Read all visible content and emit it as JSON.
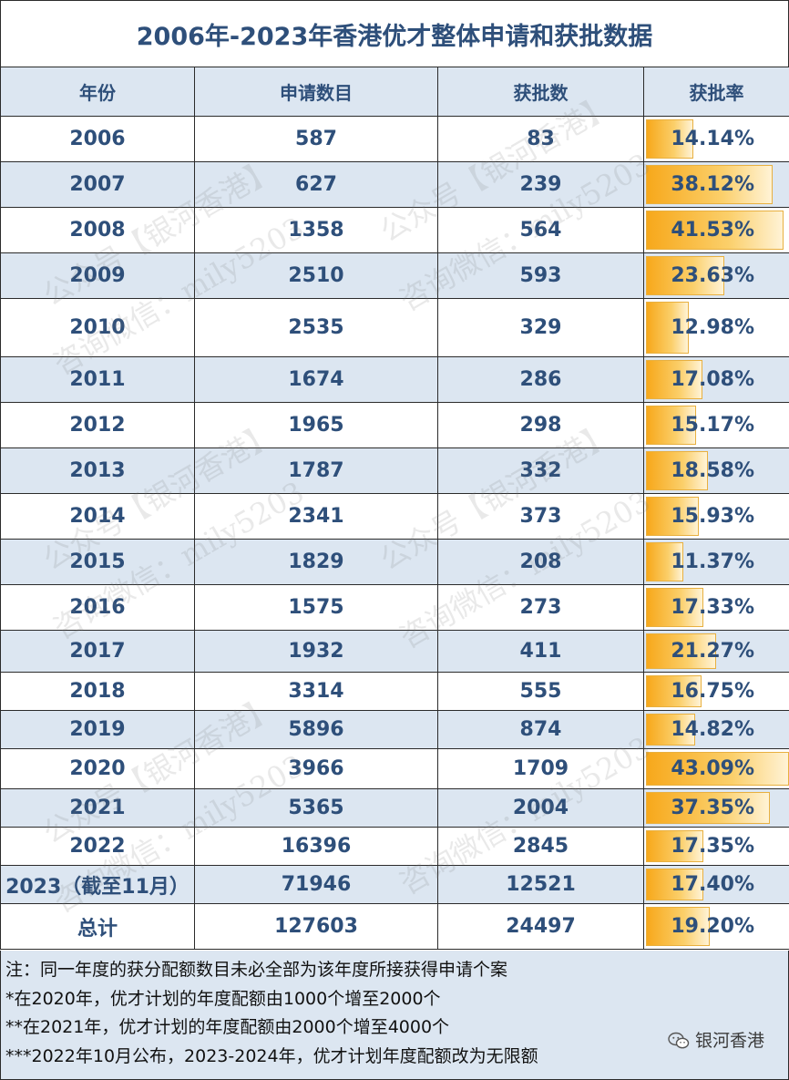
{
  "title": "2006年-2023年香港优才整体申请和获批数据",
  "headers": [
    "年份",
    "申请数目",
    "获批数",
    "获批率"
  ],
  "rows": [
    {
      "year": "2006",
      "applications": "587",
      "approved": "83",
      "rate": "14.14%",
      "rate_value": 14.14
    },
    {
      "year": "2007",
      "applications": "627",
      "approved": "239",
      "rate": "38.12%",
      "rate_value": 38.12
    },
    {
      "year": "2008",
      "applications": "1358",
      "approved": "564",
      "rate": "41.53%",
      "rate_value": 41.53
    },
    {
      "year": "2009",
      "applications": "2510",
      "approved": "593",
      "rate": "23.63%",
      "rate_value": 23.63
    },
    {
      "year": "2010",
      "applications": "2535",
      "approved": "329",
      "rate": "12.98%",
      "rate_value": 12.98
    },
    {
      "year": "2011",
      "applications": "1674",
      "approved": "286",
      "rate": "17.08%",
      "rate_value": 17.08
    },
    {
      "year": "2012",
      "applications": "1965",
      "approved": "298",
      "rate": "15.17%",
      "rate_value": 15.17
    },
    {
      "year": "2013",
      "applications": "1787",
      "approved": "332",
      "rate": "18.58%",
      "rate_value": 18.58
    },
    {
      "year": "2014",
      "applications": "2341",
      "approved": "373",
      "rate": "15.93%",
      "rate_value": 15.93
    },
    {
      "year": "2015",
      "applications": "1829",
      "approved": "208",
      "rate": "11.37%",
      "rate_value": 11.37
    },
    {
      "year": "2016",
      "applications": "1575",
      "approved": "273",
      "rate": "17.33%",
      "rate_value": 17.33
    },
    {
      "year": "2017",
      "applications": "1932",
      "approved": "411",
      "rate": "21.27%",
      "rate_value": 21.27
    },
    {
      "year": "2018",
      "applications": "3314",
      "approved": "555",
      "rate": "16.75%",
      "rate_value": 16.75
    },
    {
      "year": "2019",
      "applications": "5896",
      "approved": "874",
      "rate": "14.82%",
      "rate_value": 14.82
    },
    {
      "year": "2020",
      "applications": "3966",
      "approved": "1709",
      "rate": "43.09%",
      "rate_value": 43.09
    },
    {
      "year": "2021",
      "applications": "5365",
      "approved": "2004",
      "rate": "37.35%",
      "rate_value": 37.35
    },
    {
      "year": "2022",
      "applications": "16396",
      "approved": "2845",
      "rate": "17.35%",
      "rate_value": 17.35
    },
    {
      "year": "2023（截至11月）",
      "applications": "71946",
      "approved": "12521",
      "rate": "17.40%",
      "rate_value": 17.4
    },
    {
      "year": "总计",
      "applications": "127603",
      "approved": "24497",
      "rate": "19.20%",
      "rate_value": 19.2
    }
  ],
  "rate_bar_max": 43.09,
  "notes": [
    "注：同一年度的获分配额数目未必全部为该年度所接获得申请个案",
    "*在2020年，优才计划的年度配额由1000个增至2000个",
    "**在2021年，优才计划的年度配额由2000个增至4000个",
    "***2022年10月公布，2023-2024年，优才计划年度配额改为无限额"
  ],
  "brand": "银河香港",
  "watermark": [
    "公众号【银河香港】",
    "咨询微信：mily5203"
  ],
  "colors": {
    "header_text": "#2e4f7a",
    "band": "#dce6f1",
    "bar": "#f7a81b"
  }
}
